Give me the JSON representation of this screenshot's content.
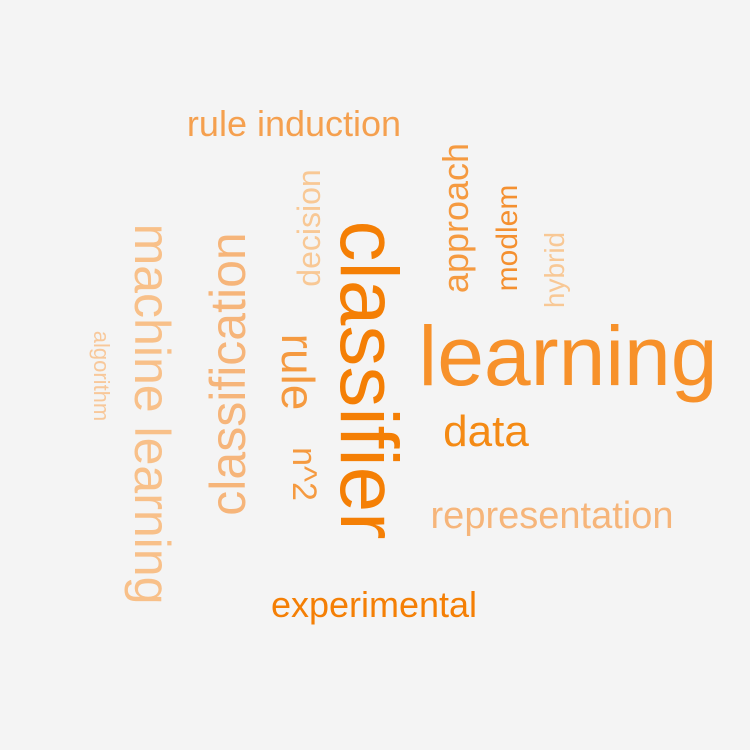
{
  "background_color": "#f4f4f4",
  "words": [
    {
      "id": "learning",
      "text": "learning",
      "color": "#f7912a"
    },
    {
      "id": "classifier",
      "text": "classifier",
      "color": "#f47f05"
    },
    {
      "id": "machine_learning",
      "text": "machine learning",
      "color": "#f8c089"
    },
    {
      "id": "classification",
      "text": "classification",
      "color": "#f6b57a"
    },
    {
      "id": "rule",
      "text": "rule",
      "color": "#f59a40"
    },
    {
      "id": "representation",
      "text": "representation",
      "color": "#f6b57a"
    },
    {
      "id": "approach",
      "text": "approach",
      "color": "#f59a40"
    },
    {
      "id": "data",
      "text": "data",
      "color": "#f48a14"
    },
    {
      "id": "experimental",
      "text": "experimental",
      "color": "#f47f05"
    },
    {
      "id": "rule_induction",
      "text": "rule induction",
      "color": "#f5a04f"
    },
    {
      "id": "modlem",
      "text": "modlem",
      "color": "#f49030"
    },
    {
      "id": "hybrid",
      "text": "hybrid",
      "color": "#f8c895"
    },
    {
      "id": "decision",
      "text": "decision",
      "color": "#f8c895"
    },
    {
      "id": "n2",
      "text": "n^2",
      "color": "#f59a40"
    },
    {
      "id": "algorithm",
      "text": "algorithm",
      "color": "#f8c89a"
    }
  ]
}
